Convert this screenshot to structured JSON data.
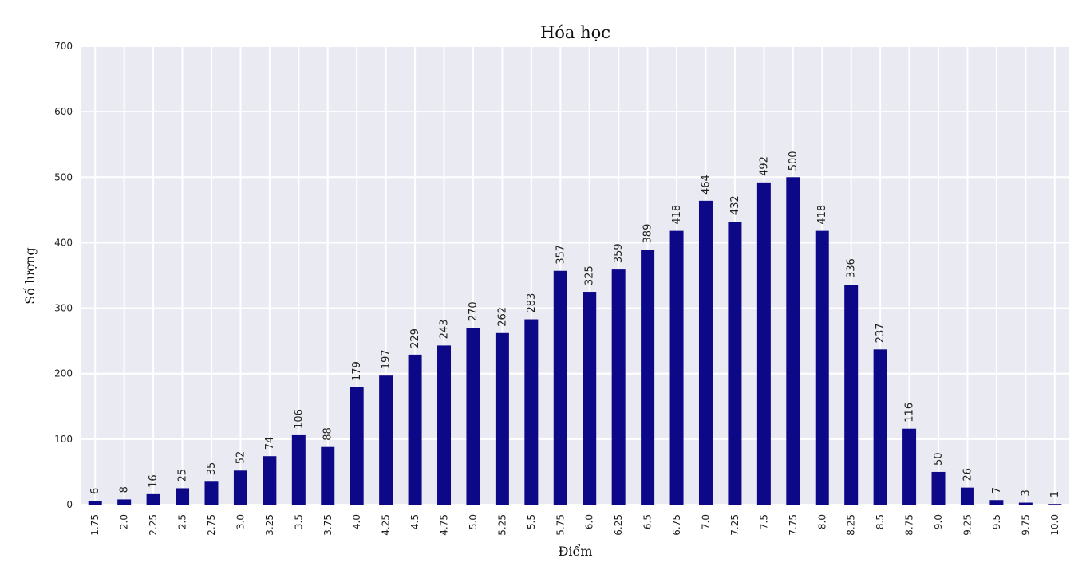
{
  "chart_data": {
    "type": "bar",
    "title": "Hóa học",
    "xlabel": "Điểm",
    "ylabel": "Số lượng",
    "ylim": [
      0,
      700
    ],
    "yticks": [
      "0",
      "100",
      "200",
      "300",
      "400",
      "500",
      "600",
      "700"
    ],
    "grid": true,
    "bar_color": "#0d0887",
    "plot_background": "#eaeaf2",
    "categories": [
      "1.75",
      "2.0",
      "2.25",
      "2.5",
      "2.75",
      "3.0",
      "3.25",
      "3.5",
      "3.75",
      "4.0",
      "4.25",
      "4.5",
      "4.75",
      "5.0",
      "5.25",
      "5.5",
      "5.75",
      "6.0",
      "6.25",
      "6.5",
      "6.75",
      "7.0",
      "7.25",
      "7.5",
      "7.75",
      "8.0",
      "8.25",
      "8.5",
      "8.75",
      "9.0",
      "9.25",
      "9.5",
      "9.75",
      "10.0"
    ],
    "values": [
      6,
      8,
      16,
      25,
      35,
      52,
      74,
      106,
      88,
      179,
      197,
      229,
      243,
      270,
      262,
      283,
      357,
      325,
      359,
      389,
      418,
      464,
      432,
      492,
      500,
      418,
      336,
      237,
      116,
      50,
      26,
      7,
      3,
      1
    ]
  }
}
